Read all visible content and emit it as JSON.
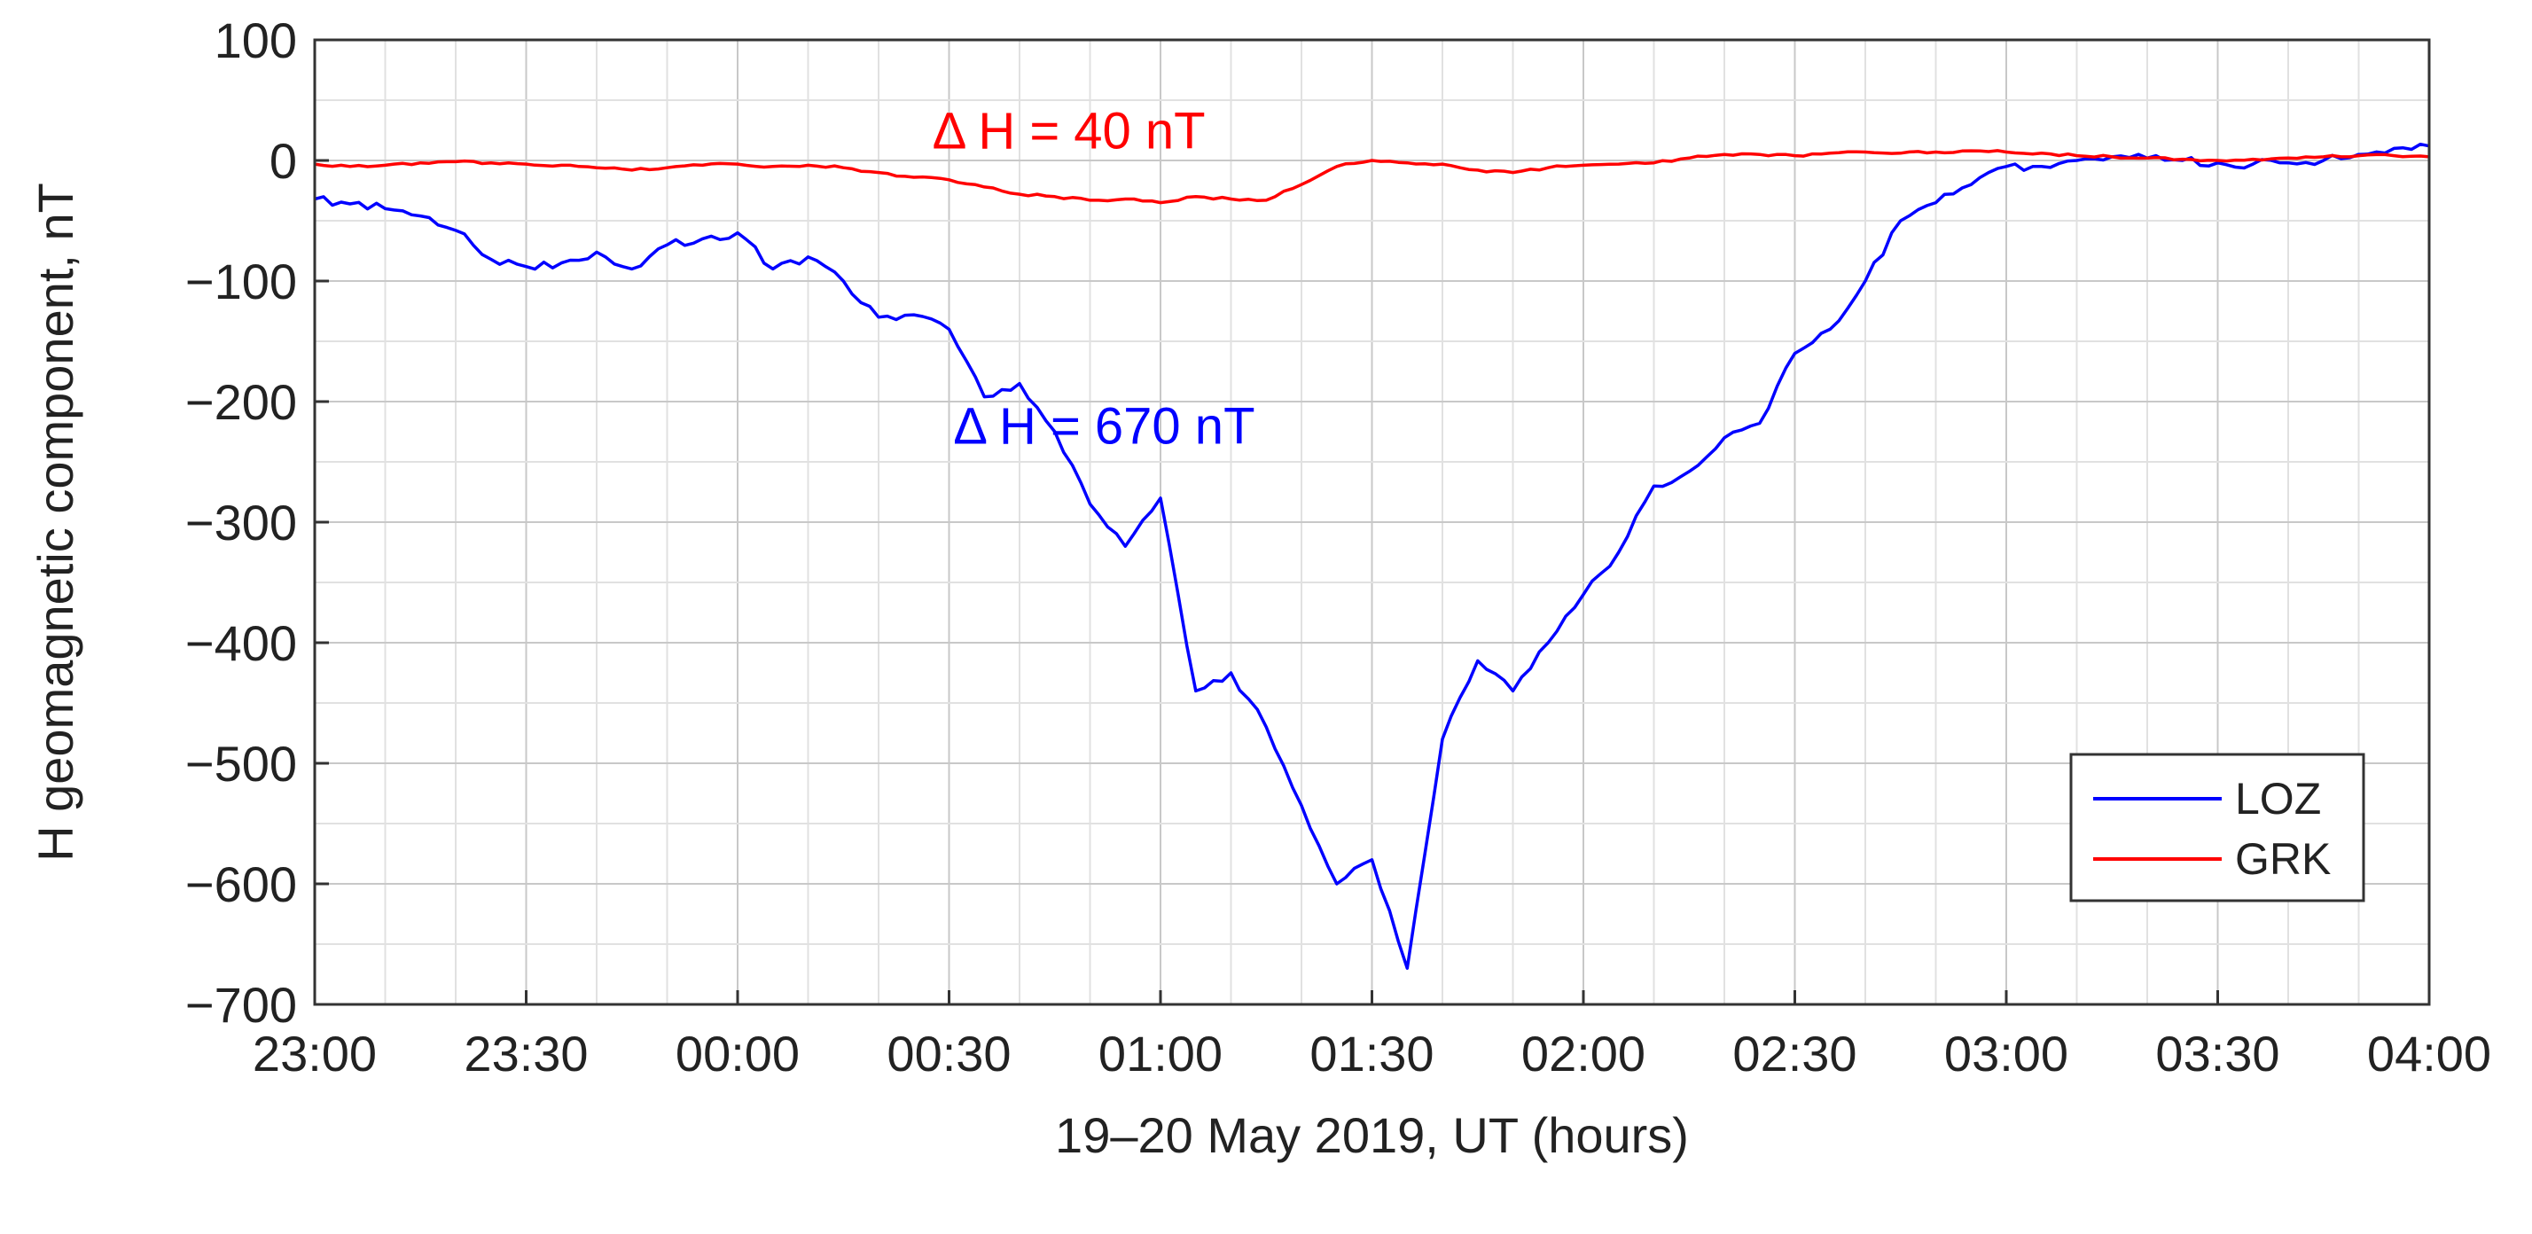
{
  "chart_data": {
    "type": "line",
    "xlabel": "19–20 May 2019, UT (hours)",
    "ylabel": "H geomagnetic component, nT",
    "xlim": [
      "23:00",
      "04:00"
    ],
    "ylim": [
      -700,
      100
    ],
    "x_ticks": [
      "23:00",
      "23:30",
      "00:00",
      "00:30",
      "01:00",
      "01:30",
      "02:00",
      "02:30",
      "03:00",
      "03:30",
      "04:00"
    ],
    "y_ticks": [
      "100",
      "0",
      "−100",
      "−200",
      "−300",
      "−400",
      "−500",
      "−600",
      "−700"
    ],
    "grid": true,
    "legend_position": "bottom-right",
    "series": [
      {
        "name": "LOZ",
        "color": "#0000ff",
        "x": [
          "23:00",
          "23:05",
          "23:10",
          "23:15",
          "23:20",
          "23:25",
          "23:30",
          "23:35",
          "23:40",
          "23:45",
          "23:50",
          "23:55",
          "00:00",
          "00:05",
          "00:10",
          "00:15",
          "00:20",
          "00:25",
          "00:30",
          "00:35",
          "00:40",
          "00:45",
          "00:50",
          "00:55",
          "01:00",
          "01:05",
          "01:10",
          "01:15",
          "01:20",
          "01:25",
          "01:30",
          "01:35",
          "01:40",
          "01:45",
          "01:50",
          "01:55",
          "02:00",
          "02:05",
          "02:10",
          "02:15",
          "02:20",
          "02:25",
          "02:30",
          "02:35",
          "02:40",
          "02:45",
          "02:50",
          "02:55",
          "03:00",
          "03:05",
          "03:10",
          "03:15",
          "03:20",
          "03:25",
          "03:30",
          "03:35",
          "03:40",
          "03:45",
          "03:50",
          "03:55",
          "04:00"
        ],
        "y": [
          -32,
          -36,
          -40,
          -46,
          -58,
          -82,
          -88,
          -85,
          -76,
          -90,
          -70,
          -65,
          -60,
          -90,
          -80,
          -100,
          -130,
          -128,
          -140,
          -196,
          -185,
          -225,
          -285,
          -320,
          -280,
          -440,
          -425,
          -470,
          -535,
          -600,
          -580,
          -670,
          -480,
          -415,
          -440,
          -400,
          -360,
          -325,
          -270,
          -258,
          -230,
          -218,
          -160,
          -140,
          -100,
          -50,
          -35,
          -20,
          -5,
          -5,
          0,
          3,
          2,
          0,
          -2,
          -3,
          -2,
          0,
          5,
          10,
          12
        ]
      },
      {
        "name": "GRK",
        "color": "#ff0000",
        "x": [
          "23:00",
          "23:05",
          "23:10",
          "23:15",
          "23:20",
          "23:25",
          "23:30",
          "23:35",
          "23:40",
          "23:45",
          "23:50",
          "23:55",
          "00:00",
          "00:05",
          "00:10",
          "00:15",
          "00:20",
          "00:25",
          "00:30",
          "00:35",
          "00:40",
          "00:45",
          "00:50",
          "00:55",
          "01:00",
          "01:05",
          "01:10",
          "01:15",
          "01:20",
          "01:25",
          "01:30",
          "01:35",
          "01:40",
          "01:45",
          "01:50",
          "01:55",
          "02:00",
          "02:05",
          "02:10",
          "02:15",
          "02:20",
          "02:25",
          "02:30",
          "02:35",
          "02:40",
          "02:45",
          "02:50",
          "02:55",
          "03:00",
          "03:05",
          "03:10",
          "03:15",
          "03:20",
          "03:25",
          "03:30",
          "03:35",
          "03:40",
          "03:45",
          "03:50",
          "03:55",
          "04:00"
        ],
        "y": [
          -3,
          -5,
          -4,
          -2,
          -1,
          -2,
          -3,
          -4,
          -6,
          -8,
          -6,
          -4,
          -3,
          -5,
          -4,
          -6,
          -10,
          -14,
          -16,
          -22,
          -28,
          -30,
          -33,
          -32,
          -35,
          -30,
          -32,
          -33,
          -20,
          -5,
          0,
          -2,
          -3,
          -8,
          -10,
          -6,
          -4,
          -3,
          -2,
          2,
          5,
          5,
          4,
          6,
          7,
          6,
          7,
          8,
          7,
          6,
          4,
          3,
          2,
          1,
          0,
          1,
          2,
          3,
          4,
          4,
          3
        ]
      }
    ],
    "annotations": [
      {
        "text": "Δ H = 40 nT",
        "x": "00:47",
        "y": 10,
        "color": "#ff0000"
      },
      {
        "text": "Δ H = 670 nT",
        "x": "00:52",
        "y": -235,
        "color": "#0000ff"
      }
    ]
  }
}
